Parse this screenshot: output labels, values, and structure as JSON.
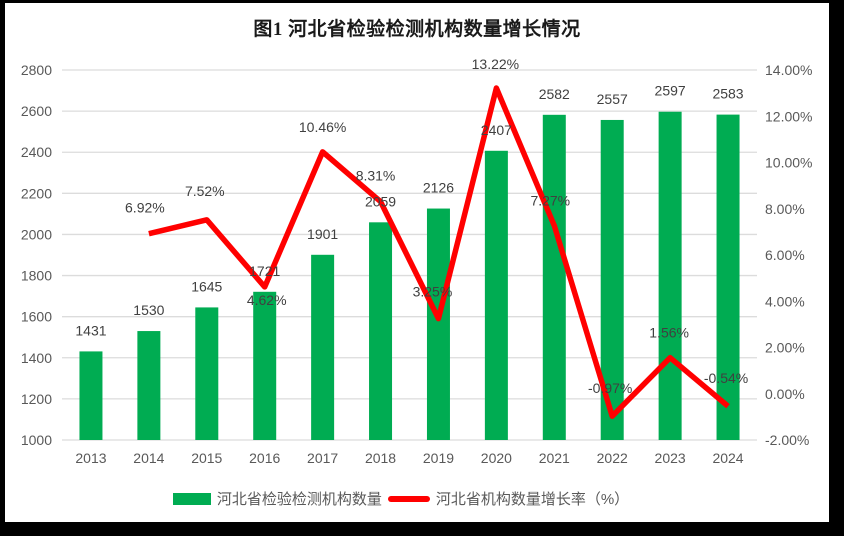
{
  "colors": {
    "frame_background": "#000000",
    "canvas_background": "#FFFFFF",
    "bar": "#00AC52",
    "line": "#FF0000",
    "gridline": "#DCDCDC",
    "axis_text": "#595959",
    "data_label_text": "#404040",
    "title_text": "#1A1A1A"
  },
  "chart_data": {
    "type": "combo",
    "title": "图1  河北省检验检测机构数量增长情况",
    "categories": [
      "2013",
      "2014",
      "2015",
      "2016",
      "2017",
      "2018",
      "2019",
      "2020",
      "2021",
      "2022",
      "2023",
      "2024"
    ],
    "series": [
      {
        "name": "河北省检验检测机构数量",
        "type": "bar",
        "axis": "left",
        "color": "#00AC52",
        "values": [
          1431,
          1530,
          1645,
          1721,
          1901,
          2059,
          2126,
          2407,
          2582,
          2557,
          2597,
          2583
        ],
        "labels": [
          "1431",
          "1530",
          "1645",
          "1721",
          "1901",
          "2059",
          "2126",
          "2407",
          "2582",
          "2557",
          "2597",
          "2583"
        ]
      },
      {
        "name": "河北省机构数量增长率（%）",
        "type": "line",
        "axis": "right",
        "color": "#FF0000",
        "values": [
          null,
          6.92,
          7.52,
          4.62,
          10.46,
          8.31,
          3.25,
          13.22,
          7.27,
          -0.97,
          1.56,
          -0.54
        ],
        "labels": [
          null,
          "6.92%",
          "7.52%",
          "4.62%",
          "10.46%",
          "8.31%",
          "3.25%",
          "13.22%",
          "7.27%",
          "-0.97%",
          "1.56%",
          "-0.54%"
        ],
        "label_dy": [
          null,
          -26,
          -29,
          13,
          -25,
          -26,
          -27,
          -24,
          -25,
          -28,
          -25,
          -28
        ],
        "label_dx": [
          null,
          -4,
          -2,
          2,
          0,
          -5,
          -6,
          -1,
          -4,
          -2,
          -1,
          -2
        ]
      }
    ],
    "left_axis": {
      "min": 1000,
      "max": 2800,
      "step": 200,
      "tick_labels": [
        "1000",
        "1200",
        "1400",
        "1600",
        "1800",
        "2000",
        "2200",
        "2400",
        "2600",
        "2800"
      ]
    },
    "right_axis": {
      "min": -2,
      "max": 14,
      "step": 2,
      "tick_labels": [
        "-2.00%",
        "0.00%",
        "2.00%",
        "4.00%",
        "6.00%",
        "8.00%",
        "10.00%",
        "12.00%",
        "14.00%"
      ]
    },
    "grid": true,
    "legend_position": "bottom"
  }
}
